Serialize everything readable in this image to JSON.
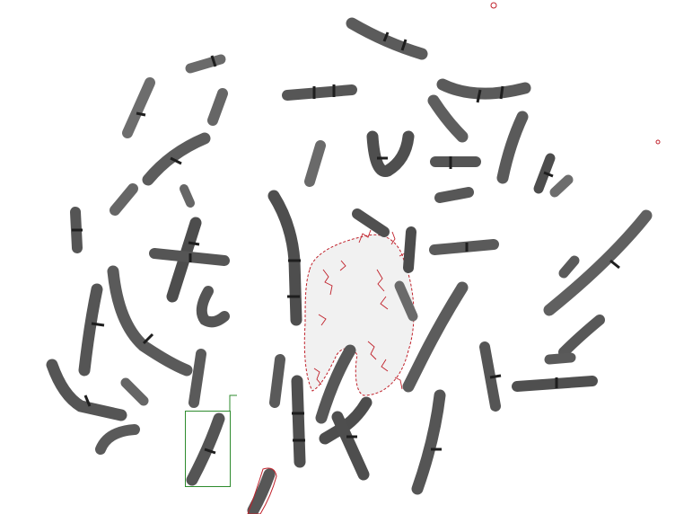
{
  "image": {
    "background": "#ffffff",
    "chromosome_color": "#5a5a5a",
    "chromosome_dark": "#2b2b2b",
    "chromosome_light": "#a9a9a9",
    "annotation_red": "#c0202a",
    "selection_green": "#2e8b2e",
    "nucleus_fill": "#f2f2f2"
  },
  "icons": {
    "selection_box": "green-selection-rectangle",
    "contour": "red-segmentation-contour"
  }
}
